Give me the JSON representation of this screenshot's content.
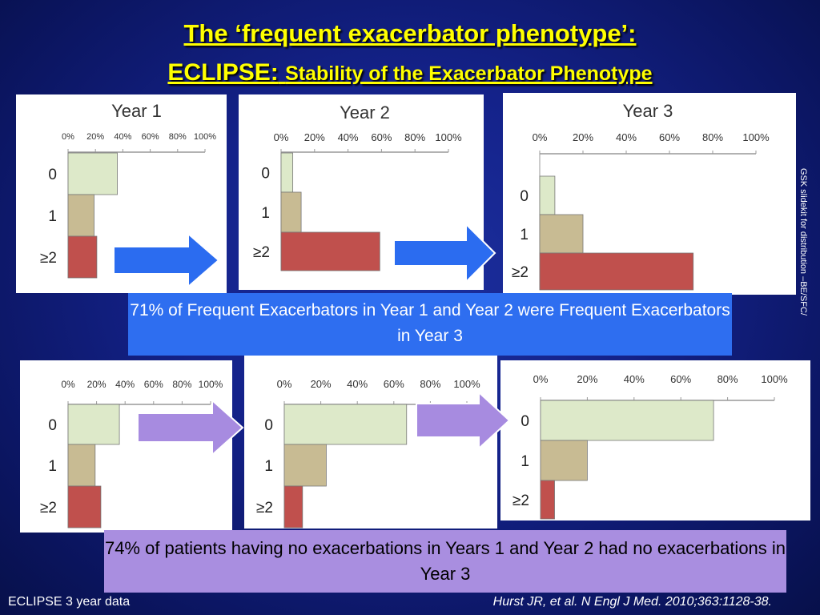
{
  "title": {
    "line1": "The ‘frequent exacerbator phenotype’:",
    "line2_prefix": "ECLIPSE:",
    "line2_suffix": "Stability of the Exacerbator Phenotype"
  },
  "side_note": "GSK slidekit for distribution –BE/SFC/",
  "callouts": {
    "top": "71% of Frequent Exacerbators in Year 1 and Year 2 were Frequent Exacerbators in Year 3",
    "bottom": "74% of patients having no exacerbations in Years 1 and Year 2 had no exacerbations in Year 3"
  },
  "footer": {
    "left": "ECLIPSE 3 year data",
    "right": "Hurst JR, et al. N Engl J Med. 2010;363:1128-38."
  },
  "colors": {
    "cat0": "#dde9c9",
    "cat1": "#c8bb93",
    "cat2": "#c0504d",
    "arrow_top": "#2b6cf0",
    "arrow_bottom": "#a78be0"
  },
  "chart_data": [
    {
      "type": "bar",
      "orientation": "horizontal",
      "title": "Year 1",
      "categories": [
        "0",
        "1",
        "≥2"
      ],
      "values": [
        36,
        19,
        21
      ],
      "xticks": [
        "0%",
        "20%",
        "40%",
        "60%",
        "80%",
        "100%"
      ],
      "xlim": [
        0,
        100
      ]
    },
    {
      "type": "bar",
      "orientation": "horizontal",
      "title": "Year 2",
      "categories": [
        "0",
        "1",
        "≥2"
      ],
      "values": [
        7,
        12,
        59
      ],
      "xticks": [
        "0%",
        "20%",
        "40%",
        "60%",
        "80%",
        "100%"
      ],
      "xlim": [
        0,
        100
      ]
    },
    {
      "type": "bar",
      "orientation": "horizontal",
      "title": "Year 3",
      "categories": [
        "0",
        "1",
        "≥2"
      ],
      "values": [
        7,
        20,
        71
      ],
      "xticks": [
        "0%",
        "20%",
        "40%",
        "60%",
        "80%",
        "100%"
      ],
      "xlim": [
        0,
        100
      ]
    },
    {
      "type": "bar",
      "orientation": "horizontal",
      "title": "",
      "categories": [
        "0",
        "1",
        "≥2"
      ],
      "values": [
        36,
        19,
        23
      ],
      "xticks": [
        "0%",
        "20%",
        "40%",
        "60%",
        "80%",
        "100%"
      ],
      "xlim": [
        0,
        100
      ]
    },
    {
      "type": "bar",
      "orientation": "horizontal",
      "title": "",
      "categories": [
        "0",
        "1",
        "≥2"
      ],
      "values": [
        67,
        23,
        10
      ],
      "xticks": [
        "0%",
        "20%",
        "40%",
        "60%",
        "80%",
        "100%"
      ],
      "xlim": [
        0,
        100
      ]
    },
    {
      "type": "bar",
      "orientation": "horizontal",
      "title": "",
      "categories": [
        "0",
        "1",
        "≥2"
      ],
      "values": [
        74,
        20,
        6
      ],
      "xticks": [
        "0%",
        "20%",
        "40%",
        "60%",
        "80%",
        "100%"
      ],
      "xlim": [
        0,
        100
      ]
    }
  ]
}
